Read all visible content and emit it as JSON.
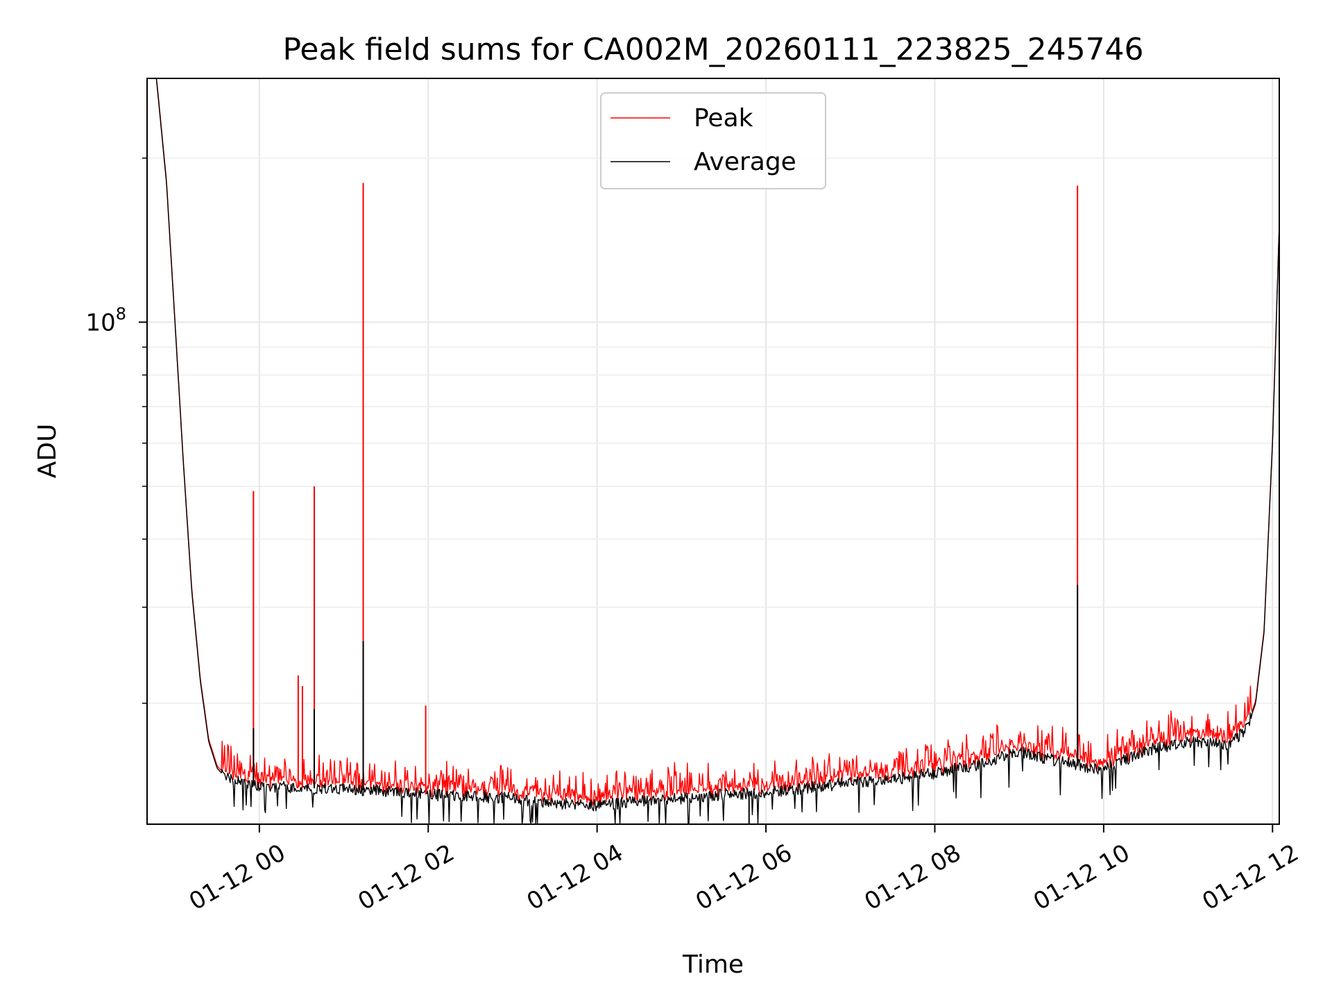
{
  "chart_data": {
    "type": "line",
    "title": "Peak field sums for CA002M_20260111_223825_245746",
    "xlabel": "Time",
    "ylabel": "ADU",
    "x_unit": "hours since 2026-01-12 00:00",
    "xlim": [
      -1.33,
      12.08
    ],
    "ylim": [
      12000000,
      280000000
    ],
    "yscale": "log",
    "grid": "major and minor",
    "legend_position": "upper center",
    "x_ticks": [
      {
        "value": 0,
        "label": "01-12 00"
      },
      {
        "value": 2,
        "label": "01-12 02"
      },
      {
        "value": 4,
        "label": "01-12 04"
      },
      {
        "value": 6,
        "label": "01-12 06"
      },
      {
        "value": 8,
        "label": "01-12 08"
      },
      {
        "value": 10,
        "label": "01-12 10"
      },
      {
        "value": 12,
        "label": "01-12 12"
      }
    ],
    "y_major_ticks": [
      {
        "value": 100000000,
        "label": "10",
        "exponent": "8"
      }
    ],
    "y_minor_ticks": [
      20000000,
      30000000,
      40000000,
      50000000,
      60000000,
      70000000,
      80000000,
      90000000,
      200000000
    ],
    "baseline_series": [
      [
        -1.22,
        280000000
      ],
      [
        -1.1,
        180000000
      ],
      [
        -1.0,
        100000000
      ],
      [
        -0.9,
        55000000
      ],
      [
        -0.8,
        32000000
      ],
      [
        -0.7,
        22000000
      ],
      [
        -0.6,
        17000000
      ],
      [
        -0.5,
        15200000
      ],
      [
        -0.4,
        14600000
      ],
      [
        -0.2,
        14300000
      ],
      [
        0.0,
        14100000
      ],
      [
        0.5,
        14000000
      ],
      [
        1.0,
        13900000
      ],
      [
        1.5,
        13800000
      ],
      [
        2.0,
        13600000
      ],
      [
        2.5,
        13500000
      ],
      [
        3.0,
        13400000
      ],
      [
        3.5,
        13100000
      ],
      [
        4.0,
        13000000
      ],
      [
        4.5,
        13200000
      ],
      [
        5.0,
        13400000
      ],
      [
        5.5,
        13600000
      ],
      [
        6.0,
        13700000
      ],
      [
        6.5,
        14000000
      ],
      [
        7.0,
        14300000
      ],
      [
        7.5,
        14500000
      ],
      [
        8.0,
        14900000
      ],
      [
        8.5,
        15400000
      ],
      [
        9.0,
        16300000
      ],
      [
        9.5,
        15600000
      ],
      [
        10.0,
        15100000
      ],
      [
        10.5,
        16400000
      ],
      [
        11.0,
        17000000
      ],
      [
        11.5,
        16800000
      ],
      [
        11.7,
        18000000
      ],
      [
        11.8,
        20000000
      ],
      [
        11.9,
        27000000
      ],
      [
        12.0,
        60000000
      ],
      [
        12.08,
        150000000
      ]
    ],
    "series": [
      {
        "name": "Peak",
        "color": "#ff0000",
        "spikes": [
          {
            "x": -0.07,
            "y": 49000000
          },
          {
            "x": 0.46,
            "y": 22500000
          },
          {
            "x": 0.51,
            "y": 21500000
          },
          {
            "x": 0.65,
            "y": 50000000
          },
          {
            "x": 1.23,
            "y": 180000000
          },
          {
            "x": 1.97,
            "y": 19800000
          },
          {
            "x": 9.69,
            "y": 178000000
          }
        ]
      },
      {
        "name": "Average",
        "color": "#000000",
        "spikes": [
          {
            "x": -0.07,
            "y": 18000000
          },
          {
            "x": 0.65,
            "y": 19500000
          },
          {
            "x": 1.23,
            "y": 26000000
          },
          {
            "x": 9.69,
            "y": 33000000
          },
          {
            "x": 5.8,
            "y": 12000000
          }
        ]
      }
    ]
  }
}
